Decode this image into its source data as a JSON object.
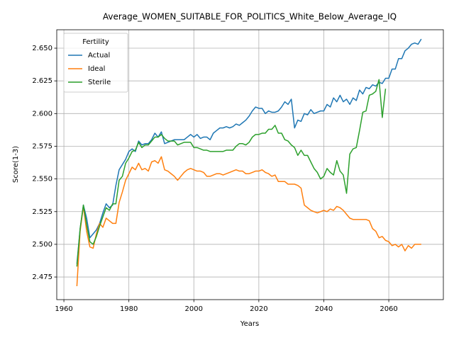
{
  "chart_data": {
    "type": "line",
    "title": "Average_WOMEN_SUITABLE_FOR_POLITICS_White_Below_Average_IQ",
    "xlabel": "Years",
    "ylabel": "Score(1-3)",
    "legend_title": "Fertility",
    "legend": "upper left",
    "grid": true,
    "xlim": [
      1957.8,
      2076.8
    ],
    "xticks": [
      1960,
      1980,
      2000,
      2020,
      2040,
      2060
    ],
    "ylim": [
      2.4577,
      2.6641
    ],
    "yticks": [
      2.475,
      {
        "value": 2.5,
        "label": "2.500"
      },
      2.525,
      {
        "value": 2.55,
        "label": "2.550"
      },
      2.575,
      {
        "value": 2.6,
        "label": "2.600"
      },
      2.625,
      {
        "value": 2.65,
        "label": "2.650"
      }
    ],
    "x": [
      1964,
      1965,
      1966,
      1967,
      1968,
      1969,
      1970,
      1971,
      1972,
      1973,
      1974,
      1975,
      1976,
      1977,
      1978,
      1979,
      1980,
      1981,
      1982,
      1983,
      1984,
      1985,
      1986,
      1987,
      1988,
      1989,
      1990,
      1991,
      1992,
      1993,
      1994,
      1995,
      1996,
      1997,
      1998,
      1999,
      2000,
      2001,
      2002,
      2003,
      2004,
      2005,
      2006,
      2007,
      2008,
      2009,
      2010,
      2011,
      2012,
      2013,
      2014,
      2015,
      2016,
      2017,
      2018,
      2019,
      2020,
      2021,
      2022,
      2023,
      2024,
      2025,
      2026,
      2027,
      2028,
      2029,
      2030,
      2031,
      2032,
      2033,
      2034,
      2035,
      2036,
      2037,
      2038,
      2039,
      2040,
      2041,
      2042,
      2043,
      2044,
      2045,
      2046,
      2047,
      2048,
      2049,
      2050,
      2051,
      2052,
      2053,
      2054,
      2055,
      2056,
      2057,
      2058,
      2059,
      2060,
      2061,
      2062,
      2063,
      2064,
      2065,
      2066,
      2067,
      2068,
      2069,
      2070
    ],
    "series": [
      {
        "name": "Actual",
        "color": "#1f77b4",
        "values": [
          2.485,
          2.512,
          2.53,
          2.52,
          2.505,
          2.508,
          2.511,
          2.516,
          2.524,
          2.531,
          2.528,
          2.53,
          2.545,
          2.557,
          2.561,
          2.565,
          2.571,
          2.573,
          2.571,
          2.579,
          2.576,
          2.577,
          2.577,
          2.58,
          2.585,
          2.582,
          2.586,
          2.577,
          2.578,
          2.579,
          2.58,
          2.58,
          2.58,
          2.58,
          2.582,
          2.584,
          2.582,
          2.584,
          2.581,
          2.582,
          2.582,
          2.58,
          2.585,
          2.587,
          2.589,
          2.589,
          2.59,
          2.589,
          2.59,
          2.592,
          2.591,
          2.593,
          2.595,
          2.598,
          2.602,
          2.605,
          2.604,
          2.604,
          2.6,
          2.602,
          2.601,
          2.601,
          2.602,
          2.605,
          2.609,
          2.607,
          2.611,
          2.589,
          2.595,
          2.594,
          2.6,
          2.599,
          2.603,
          2.6,
          2.601,
          2.602,
          2.602,
          2.607,
          2.605,
          2.612,
          2.609,
          2.614,
          2.609,
          2.611,
          2.607,
          2.612,
          2.61,
          2.618,
          2.615,
          2.62,
          2.619,
          2.622,
          2.621,
          2.624,
          2.623,
          2.627,
          2.627,
          2.634,
          2.634,
          2.642,
          2.642,
          2.648,
          2.65,
          2.653,
          2.654,
          2.653,
          2.657
        ]
      },
      {
        "name": "Ideal",
        "color": "#ff7f0e",
        "values": [
          2.468,
          2.51,
          2.529,
          2.51,
          2.498,
          2.497,
          2.508,
          2.516,
          2.513,
          2.52,
          2.518,
          2.516,
          2.516,
          2.532,
          2.54,
          2.549,
          2.554,
          2.559,
          2.557,
          2.562,
          2.557,
          2.558,
          2.556,
          2.563,
          2.564,
          2.562,
          2.567,
          2.557,
          2.556,
          2.554,
          2.552,
          2.549,
          2.552,
          2.555,
          2.557,
          2.558,
          2.557,
          2.556,
          2.556,
          2.555,
          2.552,
          2.552,
          2.553,
          2.554,
          2.554,
          2.553,
          2.554,
          2.555,
          2.556,
          2.557,
          2.556,
          2.556,
          2.554,
          2.554,
          2.555,
          2.556,
          2.556,
          2.557,
          2.555,
          2.554,
          2.552,
          2.553,
          2.548,
          2.548,
          2.548,
          2.546,
          2.546,
          2.546,
          2.545,
          2.543,
          2.53,
          2.528,
          2.526,
          2.525,
          2.524,
          2.525,
          2.526,
          2.525,
          2.527,
          2.526,
          2.529,
          2.528,
          2.526,
          2.523,
          2.52,
          2.519,
          2.519,
          2.519,
          2.519,
          2.519,
          2.518,
          2.512,
          2.51,
          2.505,
          2.506,
          2.503,
          2.502,
          2.499,
          2.5,
          2.498,
          2.5,
          2.495,
          2.499,
          2.497,
          2.5,
          2.5,
          2.5
        ]
      },
      {
        "name": "Sterile",
        "color": "#2ca02c",
        "values": [
          2.483,
          2.512,
          2.53,
          2.515,
          2.502,
          2.5,
          2.506,
          2.514,
          2.521,
          2.528,
          2.526,
          2.531,
          2.531,
          2.549,
          2.552,
          2.562,
          2.566,
          2.571,
          2.572,
          2.578,
          2.574,
          2.576,
          2.576,
          2.579,
          2.582,
          2.582,
          2.584,
          2.581,
          2.579,
          2.579,
          2.579,
          2.576,
          2.577,
          2.578,
          2.578,
          2.578,
          2.574,
          2.574,
          2.573,
          2.572,
          2.572,
          2.571,
          2.571,
          2.571,
          2.571,
          2.571,
          2.572,
          2.572,
          2.572,
          2.575,
          2.577,
          2.577,
          2.576,
          2.578,
          2.582,
          2.584,
          2.584,
          2.585,
          2.585,
          2.588,
          2.588,
          2.591,
          2.585,
          2.585,
          2.58,
          2.579,
          2.576,
          2.574,
          2.568,
          2.572,
          2.568,
          2.568,
          2.563,
          2.558,
          2.555,
          2.55,
          2.552,
          2.558,
          2.555,
          2.553,
          2.564,
          2.556,
          2.553,
          2.539,
          2.569,
          2.573,
          2.574,
          2.587,
          2.601,
          2.602,
          2.614,
          2.615,
          2.617,
          2.626,
          2.597,
          2.619,
          null,
          null,
          null,
          null,
          null,
          null,
          null,
          null,
          null,
          null,
          null
        ]
      }
    ]
  }
}
